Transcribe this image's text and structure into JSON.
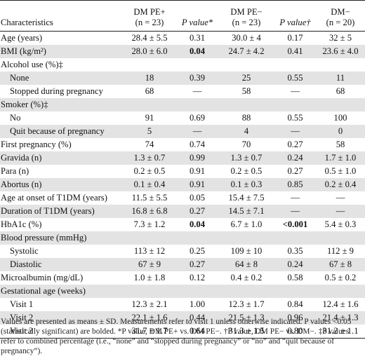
{
  "header": {
    "characteristics": "Characteristics",
    "group1": "DM PE+",
    "group1_n": "(n = 23)",
    "pvalue1": "P value*",
    "group2": "DM PE−",
    "group2_n": "(n = 23)",
    "pvalue2": "P value†",
    "group3": "DM−",
    "group3_n": "(n = 20)"
  },
  "rows": [
    {
      "label": "Age (years)",
      "shade": false,
      "indent": false,
      "c1": "28.4 ± 5.5",
      "c2": "0.31",
      "c3": "30.0 ± 4",
      "c4": "0.17",
      "c5": "32 ± 5"
    },
    {
      "label": "BMI (kg/m²)",
      "shade": true,
      "indent": false,
      "c1": "28.0 ± 6.0",
      "c2": "0.04",
      "c2_bold": true,
      "c3": "24.7 ± 4.2",
      "c4": "0.41",
      "c5": "23.6 ± 4.0"
    },
    {
      "label": "Alcohol use (%)‡",
      "shade": false,
      "indent": false,
      "c1": "",
      "c2": "",
      "c3": "",
      "c4": "",
      "c5": ""
    },
    {
      "label": "None",
      "shade": true,
      "indent": true,
      "c1": "18",
      "c2": "0.39",
      "c3": "25",
      "c4": "0.55",
      "c5": "11"
    },
    {
      "label": "Stopped during pregnancy",
      "shade": false,
      "indent": true,
      "c1": "68",
      "c2": "—",
      "c3": "58",
      "c4": "—",
      "c5": "68"
    },
    {
      "label": "Smoker (%)‡",
      "shade": true,
      "indent": false,
      "c1": "",
      "c2": "",
      "c3": "",
      "c4": "",
      "c5": ""
    },
    {
      "label": "No",
      "shade": false,
      "indent": true,
      "c1": "91",
      "c2": "0.69",
      "c3": "88",
      "c4": "0.55",
      "c5": "100"
    },
    {
      "label": "Quit because of pregnancy",
      "shade": true,
      "indent": true,
      "c1": "5",
      "c2": "—",
      "c3": "4",
      "c4": "—",
      "c5": "0"
    },
    {
      "label": "First pregnancy (%)",
      "shade": false,
      "indent": false,
      "c1": "74",
      "c2": "0.74",
      "c3": "70",
      "c4": "0.27",
      "c5": "58"
    },
    {
      "label": "Gravida (n)",
      "shade": true,
      "indent": false,
      "c1": "1.3 ± 0.7",
      "c2": "0.99",
      "c3": "1.3 ± 0.7",
      "c4": "0.24",
      "c5": "1.7 ± 1.0"
    },
    {
      "label": "Para (n)",
      "shade": false,
      "indent": false,
      "c1": "0.2 ± 0.5",
      "c2": "0.91",
      "c3": "0.2 ± 0.5",
      "c4": "0.27",
      "c5": "0.5 ± 1.0"
    },
    {
      "label": "Abortus (n)",
      "shade": true,
      "indent": false,
      "c1": "0.1 ± 0.4",
      "c2": "0.91",
      "c3": "0.1 ± 0.3",
      "c4": "0.85",
      "c5": "0.2 ± 0.4"
    },
    {
      "label": "Age at onset of T1DM (years)",
      "shade": false,
      "indent": false,
      "c1": "11.5 ± 5.5",
      "c2": "0.05",
      "c3": "15.4 ± 7.5",
      "c4": "—",
      "c5": "—"
    },
    {
      "label": "Duration of T1DM (years)",
      "shade": true,
      "indent": false,
      "c1": "16.8 ± 6.8",
      "c2": "0.27",
      "c3": "14.5 ± 7.1",
      "c4": "—",
      "c5": "—"
    },
    {
      "label": "HbA1c (%)",
      "shade": false,
      "indent": false,
      "c1": "7.3 ± 1.2",
      "c2": "0.04",
      "c2_bold": true,
      "c3": "6.7 ± 1.0",
      "c4": "<0.001",
      "c4_bold": true,
      "c5": "5.4 ± 0.3"
    },
    {
      "label": "Blood pressure (mmHg)",
      "shade": true,
      "indent": false,
      "c1": "",
      "c2": "",
      "c3": "",
      "c4": "",
      "c5": ""
    },
    {
      "label": "Systolic",
      "shade": false,
      "indent": true,
      "c1": "113 ± 12",
      "c2": "0.25",
      "c3": "109 ± 10",
      "c4": "0.35",
      "c5": "112 ± 9"
    },
    {
      "label": "Diastolic",
      "shade": true,
      "indent": true,
      "c1": "67 ± 9",
      "c2": "0.27",
      "c3": "64 ± 8",
      "c4": "0.24",
      "c5": "67 ± 8"
    },
    {
      "label": "Microalbumin (mg/dL)",
      "shade": false,
      "indent": false,
      "c1": "1.0 ± 1.8",
      "c2": "0.12",
      "c3": "0.4 ± 0.2",
      "c4": "0.58",
      "c5": "0.5 ± 0.2"
    },
    {
      "label": "Gestational age (weeks)",
      "shade": true,
      "indent": false,
      "c1": "",
      "c2": "",
      "c3": "",
      "c4": "",
      "c5": ""
    },
    {
      "label": "Visit 1",
      "shade": false,
      "indent": true,
      "c1": "12.3 ± 2.1",
      "c2": "1.00",
      "c3": "12.3 ± 1.7",
      "c4": "0.84",
      "c5": "12.4 ± 1.6"
    },
    {
      "label": "Visit 2",
      "shade": true,
      "indent": true,
      "c1": "22.1 ± 1.6",
      "c2": "0.44",
      "c3": "21.5 ± 1.3",
      "c4": "0.96",
      "c5": "21.4 ± 1.3"
    },
    {
      "label": "Visit 3",
      "shade": false,
      "indent": true,
      "c1": "31.7 ± 1.7",
      "c2": "0.64",
      "c3": "31.3 ± 1.5",
      "c4": "0.80",
      "c5": "31.2 ± 1.1"
    }
  ],
  "footnote": "Values are presented as means ± SD. Measurements refer to visit 1 unless otherwise indicated. P values <0.05 (statistically significant) are bolded. *P value, DM PE+ vs. DM PE−. †P value, DM PE− vs. DM−. ‡P values refer to combined percentage (i.e., “none” and “stopped during pregnancy” or “no” and “quit because of pregnancy”)."
}
